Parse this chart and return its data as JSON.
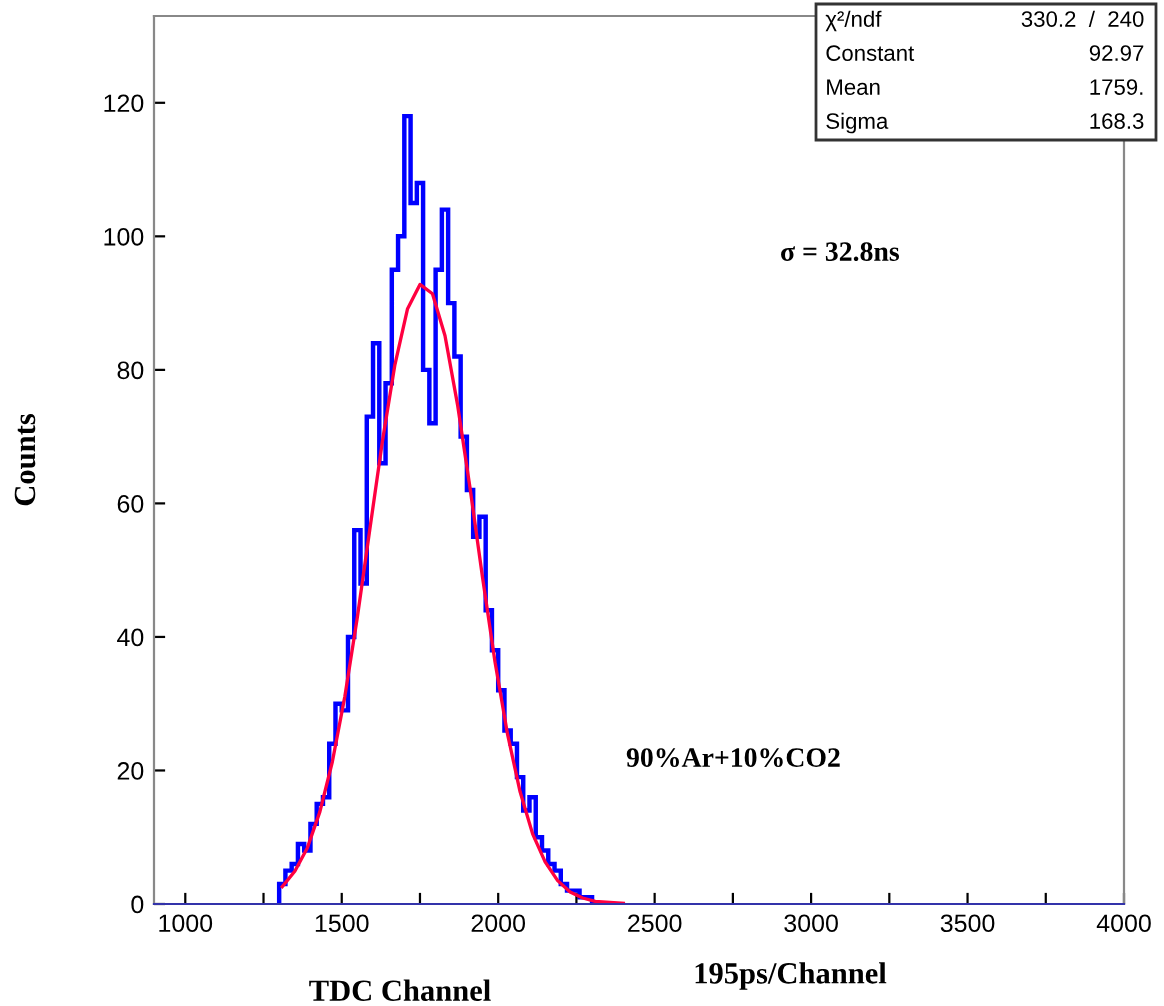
{
  "chart_data": {
    "type": "histogram",
    "xlabel": "TDC Channel",
    "ylabel": "Counts",
    "xlim": [
      900,
      4000
    ],
    "ylim": [
      0,
      133
    ],
    "xticks": [
      1000,
      {
        "value": 1250,
        "label": null
      },
      1500,
      {
        "value": 1750,
        "label": null
      },
      2000,
      {
        "value": 2250,
        "label": null
      },
      2500,
      {
        "value": 2750,
        "label": null
      },
      3000,
      {
        "value": 3250,
        "label": null
      },
      3500,
      {
        "value": 3750,
        "label": null
      },
      4000
    ],
    "yticks": [
      0,
      20,
      40,
      60,
      80,
      100,
      120
    ],
    "grid": false,
    "series": [
      {
        "color": "#0000ff",
        "bins": [
          1300,
          1320,
          1340,
          1360,
          1380,
          1400,
          1420,
          1440,
          1460,
          1480,
          1500,
          1520,
          1540,
          1560,
          1580,
          1600,
          1620,
          1640,
          1660,
          1680,
          1700,
          1720,
          1740,
          1760,
          1780,
          1800,
          1820,
          1840,
          1860,
          1880,
          1900,
          1920,
          1940,
          1960,
          1980,
          2000,
          2020,
          2040,
          2060,
          2080,
          2100,
          2120,
          2140,
          2160,
          2180,
          2200,
          2220,
          2240,
          2260,
          2280,
          2300,
          2320
        ],
        "values": [
          3,
          5,
          6,
          9,
          8,
          12,
          15,
          16,
          24,
          30,
          29,
          40,
          56,
          48,
          73,
          84,
          66,
          78,
          95,
          100,
          118,
          105,
          108,
          80,
          72,
          95,
          104,
          90,
          82,
          70,
          62,
          55,
          58,
          44,
          38,
          32,
          26,
          24,
          19,
          14,
          16,
          10,
          8,
          6,
          5,
          3,
          2,
          2,
          1,
          1,
          0
        ]
      },
      {
        "type": "line",
        "color": "#ff0040",
        "x": [
          1310,
          1350,
          1390,
          1430,
          1470,
          1510,
          1550,
          1590,
          1630,
          1670,
          1710,
          1750,
          1790,
          1830,
          1870,
          1910,
          1950,
          1990,
          2030,
          2070,
          2110,
          2150,
          2190,
          2230,
          2270,
          2310,
          2400
        ],
        "values": [
          2.6,
          4.9,
          8.4,
          13.8,
          21.3,
          31.1,
          43.0,
          56.2,
          69.3,
          80.8,
          89.1,
          92.8,
          91.4,
          85.1,
          74.8,
          62.3,
          48.9,
          36.2,
          25.4,
          16.8,
          10.5,
          6.3,
          3.5,
          1.8,
          0.9,
          0.4,
          0.1
        ]
      }
    ],
    "annotations": [
      "χ²/ndf",
      "330.2  /  240",
      "Constant",
      "92.97",
      "Mean",
      "1759.",
      "Sigma",
      "168.3",
      "σ = 32.8ns",
      "90%Ar+10%CO2",
      "195ps/Channel"
    ]
  }
}
